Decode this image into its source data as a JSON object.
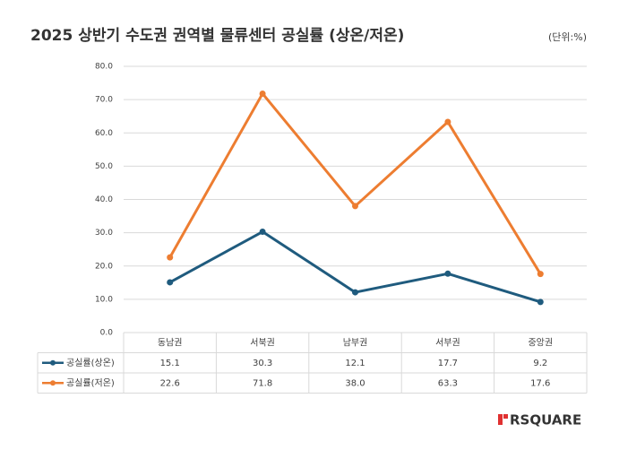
{
  "chart_data": {
    "type": "line",
    "title": "2025 상반기 수도권 권역별 물류센터 공실률 (상온/저온)",
    "subtitle": "(단위:%)",
    "categories": [
      "동남권",
      "서북권",
      "남부권",
      "서부권",
      "중앙권"
    ],
    "series": [
      {
        "name": "공실률(상온)",
        "color": "#1f5b7e",
        "values": [
          15.1,
          30.3,
          12.1,
          17.7,
          9.2
        ],
        "value_labels": [
          "15.1",
          "30.3",
          "12.1",
          "17.7",
          "9.2"
        ]
      },
      {
        "name": "공실률(저온)",
        "color": "#ed7d31",
        "values": [
          22.6,
          71.8,
          38.0,
          63.3,
          17.6
        ],
        "value_labels": [
          "22.6",
          "71.8",
          "38.0",
          "63.3",
          "17.6"
        ]
      }
    ],
    "ylim": [
      0,
      80
    ],
    "yticks": [
      {
        "value": 0,
        "label": "0.0"
      },
      {
        "value": 10,
        "label": "10.0"
      },
      {
        "value": 20,
        "label": "20.0"
      },
      {
        "value": 30,
        "label": "30.0"
      },
      {
        "value": 40,
        "label": "40.0"
      },
      {
        "value": 50,
        "label": "50.0"
      },
      {
        "value": 60,
        "label": "60.0"
      },
      {
        "value": 70,
        "label": "70.0"
      },
      {
        "value": 80,
        "label": "80.0"
      }
    ],
    "grid": true
  },
  "brand": "RSQUARE"
}
